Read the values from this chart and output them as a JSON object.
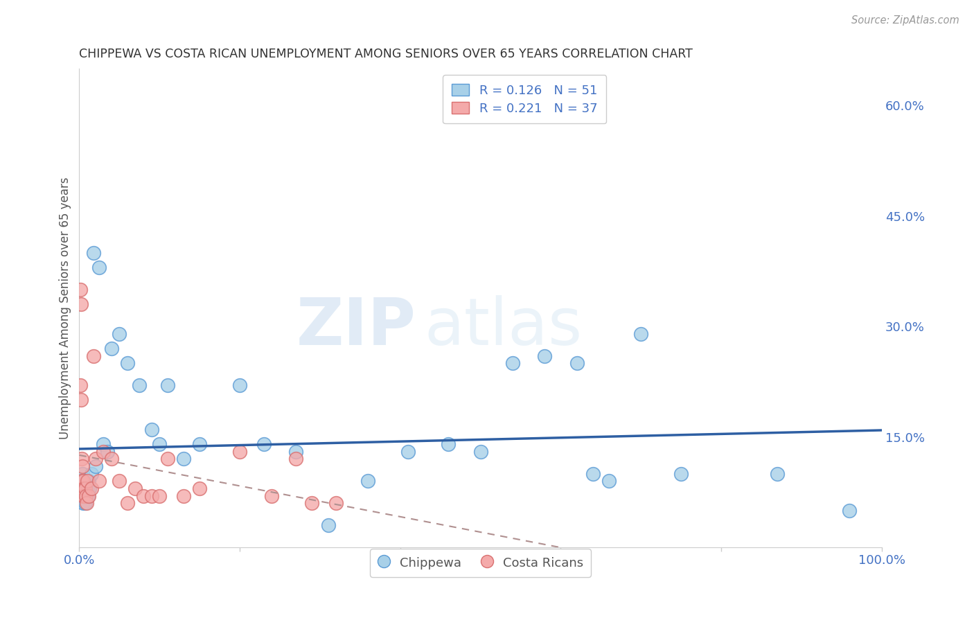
{
  "title": "CHIPPEWA VS COSTA RICAN UNEMPLOYMENT AMONG SENIORS OVER 65 YEARS CORRELATION CHART",
  "source": "Source: ZipAtlas.com",
  "ylabel": "Unemployment Among Seniors over 65 years",
  "xlim": [
    0,
    1.0
  ],
  "ylim": [
    0,
    0.65
  ],
  "xtick_positions": [
    0.0,
    0.2,
    0.4,
    0.6,
    0.8,
    1.0
  ],
  "xticklabels": [
    "0.0%",
    "",
    "",
    "",
    "",
    "100.0%"
  ],
  "ytick_positions": [
    0.0,
    0.15,
    0.3,
    0.45,
    0.6
  ],
  "ytick_labels": [
    "",
    "15.0%",
    "30.0%",
    "45.0%",
    "60.0%"
  ],
  "chippewa_fill": "#a8d0e8",
  "chippewa_edge": "#5b9bd5",
  "costa_rican_fill": "#f4aaaa",
  "costa_rican_edge": "#d97070",
  "chip_line_color": "#2e5fa3",
  "cr_line_color": "#c08080",
  "R_chippewa": 0.126,
  "N_chippewa": 51,
  "R_costa_rican": 0.221,
  "N_costa_rican": 37,
  "chippewa_x": [
    0.001,
    0.002,
    0.002,
    0.003,
    0.003,
    0.004,
    0.004,
    0.005,
    0.005,
    0.006,
    0.006,
    0.007,
    0.007,
    0.008,
    0.009,
    0.01,
    0.011,
    0.012,
    0.013,
    0.015,
    0.018,
    0.02,
    0.025,
    0.03,
    0.035,
    0.04,
    0.05,
    0.06,
    0.075,
    0.09,
    0.1,
    0.11,
    0.13,
    0.15,
    0.2,
    0.23,
    0.27,
    0.31,
    0.36,
    0.41,
    0.46,
    0.5,
    0.54,
    0.58,
    0.62,
    0.64,
    0.66,
    0.7,
    0.75,
    0.87,
    0.96
  ],
  "chippewa_y": [
    0.09,
    0.08,
    0.07,
    0.08,
    0.09,
    0.07,
    0.1,
    0.08,
    0.06,
    0.07,
    0.09,
    0.08,
    0.06,
    0.07,
    0.09,
    0.08,
    0.07,
    0.09,
    0.08,
    0.1,
    0.4,
    0.11,
    0.38,
    0.14,
    0.13,
    0.27,
    0.29,
    0.25,
    0.22,
    0.16,
    0.14,
    0.22,
    0.12,
    0.14,
    0.22,
    0.14,
    0.13,
    0.03,
    0.09,
    0.13,
    0.14,
    0.13,
    0.25,
    0.26,
    0.25,
    0.1,
    0.09,
    0.29,
    0.1,
    0.1,
    0.05
  ],
  "costa_rican_x": [
    0.001,
    0.001,
    0.002,
    0.002,
    0.003,
    0.003,
    0.004,
    0.004,
    0.005,
    0.005,
    0.006,
    0.006,
    0.007,
    0.008,
    0.009,
    0.01,
    0.012,
    0.015,
    0.018,
    0.02,
    0.025,
    0.03,
    0.04,
    0.05,
    0.06,
    0.07,
    0.08,
    0.09,
    0.1,
    0.11,
    0.13,
    0.15,
    0.2,
    0.24,
    0.27,
    0.29,
    0.32
  ],
  "costa_rican_y": [
    0.35,
    0.22,
    0.33,
    0.2,
    0.12,
    0.09,
    0.11,
    0.08,
    0.09,
    0.07,
    0.08,
    0.07,
    0.08,
    0.07,
    0.06,
    0.09,
    0.07,
    0.08,
    0.26,
    0.12,
    0.09,
    0.13,
    0.12,
    0.09,
    0.06,
    0.08,
    0.07,
    0.07,
    0.07,
    0.12,
    0.07,
    0.08,
    0.13,
    0.07,
    0.12,
    0.06,
    0.06
  ],
  "watermark_zip": "ZIP",
  "watermark_atlas": "atlas",
  "background_color": "#ffffff",
  "grid_color": "#d0d0d0"
}
